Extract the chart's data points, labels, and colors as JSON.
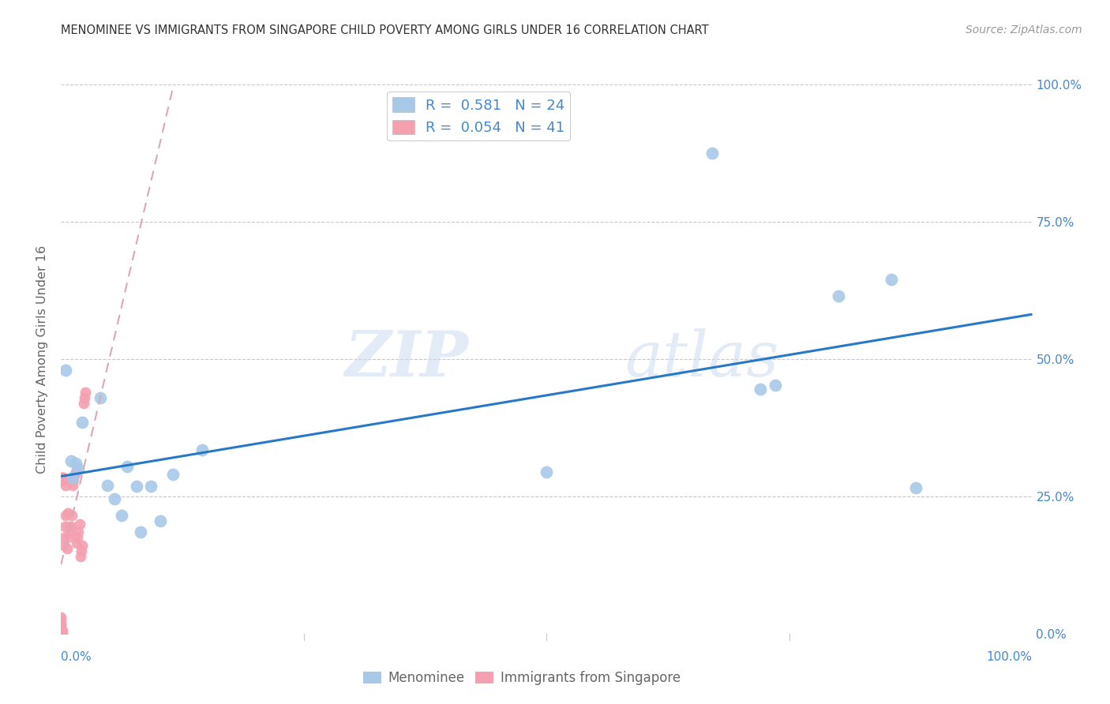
{
  "title": "MENOMINEE VS IMMIGRANTS FROM SINGAPORE CHILD POVERTY AMONG GIRLS UNDER 16 CORRELATION CHART",
  "source": "Source: ZipAtlas.com",
  "ylabel": "Child Poverty Among Girls Under 16",
  "xlim": [
    0,
    1.0
  ],
  "ylim": [
    0,
    1.0
  ],
  "menominee_color": "#a8c8e8",
  "singapore_color": "#f4a0b0",
  "menominee_R": 0.581,
  "menominee_N": 24,
  "singapore_R": 0.054,
  "singapore_N": 41,
  "watermark_zip": "ZIP",
  "watermark_atlas": "atlas",
  "menominee_line_color": "#2878c8",
  "singapore_line_color": "#d8a8b8",
  "background_color": "#ffffff",
  "grid_color": "#c8c8c8",
  "tick_color": "#4488cc",
  "label_color": "#666666",
  "menominee_points": [
    [
      0.005,
      0.48
    ],
    [
      0.01,
      0.315
    ],
    [
      0.012,
      0.285
    ],
    [
      0.015,
      0.31
    ],
    [
      0.018,
      0.3
    ],
    [
      0.022,
      0.385
    ],
    [
      0.04,
      0.43
    ],
    [
      0.048,
      0.27
    ],
    [
      0.055,
      0.245
    ],
    [
      0.062,
      0.215
    ],
    [
      0.068,
      0.305
    ],
    [
      0.078,
      0.268
    ],
    [
      0.082,
      0.185
    ],
    [
      0.092,
      0.268
    ],
    [
      0.102,
      0.205
    ],
    [
      0.115,
      0.29
    ],
    [
      0.145,
      0.335
    ],
    [
      0.5,
      0.295
    ],
    [
      0.67,
      0.875
    ],
    [
      0.72,
      0.445
    ],
    [
      0.735,
      0.452
    ],
    [
      0.8,
      0.615
    ],
    [
      0.855,
      0.645
    ],
    [
      0.88,
      0.265
    ]
  ],
  "singapore_points": [
    [
      0.0,
      0.0
    ],
    [
      0.0,
      0.005
    ],
    [
      0.0,
      0.01
    ],
    [
      0.0,
      0.015
    ],
    [
      0.0,
      0.02
    ],
    [
      0.0,
      0.025
    ],
    [
      0.0,
      0.03
    ],
    [
      0.0,
      0.278
    ],
    [
      0.0,
      0.285
    ],
    [
      0.001,
      0.0
    ],
    [
      0.001,
      0.005
    ],
    [
      0.001,
      0.278
    ],
    [
      0.001,
      0.285
    ],
    [
      0.002,
      0.28
    ],
    [
      0.002,
      0.285
    ],
    [
      0.003,
      0.16
    ],
    [
      0.003,
      0.175
    ],
    [
      0.004,
      0.195
    ],
    [
      0.005,
      0.215
    ],
    [
      0.005,
      0.27
    ],
    [
      0.006,
      0.155
    ],
    [
      0.007,
      0.175
    ],
    [
      0.007,
      0.22
    ],
    [
      0.008,
      0.195
    ],
    [
      0.009,
      0.185
    ],
    [
      0.01,
      0.195
    ],
    [
      0.011,
      0.215
    ],
    [
      0.012,
      0.27
    ],
    [
      0.013,
      0.28
    ],
    [
      0.014,
      0.29
    ],
    [
      0.015,
      0.295
    ],
    [
      0.016,
      0.165
    ],
    [
      0.017,
      0.175
    ],
    [
      0.018,
      0.185
    ],
    [
      0.019,
      0.2
    ],
    [
      0.02,
      0.14
    ],
    [
      0.021,
      0.15
    ],
    [
      0.022,
      0.16
    ],
    [
      0.023,
      0.42
    ],
    [
      0.024,
      0.43
    ],
    [
      0.025,
      0.44
    ]
  ]
}
